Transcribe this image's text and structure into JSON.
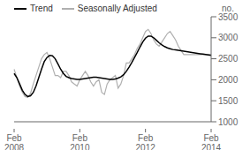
{
  "chart_data": {
    "type": "line",
    "ylabel": "no.",
    "categories": [
      "Feb\n2008",
      null,
      null,
      null,
      null,
      null,
      null,
      null,
      null,
      null,
      null,
      null,
      null,
      null,
      null,
      null,
      null,
      null,
      null,
      null,
      null,
      null,
      null,
      null,
      "Feb\n2010",
      null,
      null,
      null,
      null,
      null,
      null,
      null,
      null,
      null,
      null,
      null,
      null,
      null,
      null,
      null,
      null,
      null,
      null,
      null,
      null,
      null,
      null,
      null,
      "Feb\n2012",
      null,
      null,
      null,
      null,
      null,
      null,
      null,
      null,
      null,
      null,
      null,
      null,
      null,
      null,
      null,
      null,
      null,
      null,
      null,
      null,
      null,
      null,
      null,
      "Feb\n2014"
    ],
    "series": [
      {
        "name": "Trend",
        "color": "#000000",
        "values": [
          2150,
          2050,
          1900,
          1750,
          1650,
          1600,
          1620,
          1700,
          1850,
          2050,
          2250,
          2430,
          2530,
          2580,
          2570,
          2500,
          2380,
          2250,
          2150,
          2080,
          2050,
          2030,
          2020,
          2010,
          2010,
          2020,
          2030,
          2040,
          2050,
          2060,
          2060,
          2050,
          2040,
          2030,
          2020,
          2010,
          2010,
          2020,
          2040,
          2070,
          2120,
          2200,
          2300,
          2410,
          2530,
          2650,
          2780,
          2900,
          2990,
          3040,
          3040,
          3000,
          2940,
          2880,
          2830,
          2790,
          2760,
          2740,
          2720,
          2710,
          2700,
          2690,
          2680,
          2670,
          2660,
          2650,
          2640,
          2630,
          2620,
          2610,
          2600,
          2590,
          2580
        ]
      },
      {
        "name": "Seasonally Adjusted",
        "color": "#b0b0b0",
        "values": [
          2250,
          2050,
          1850,
          1700,
          1600,
          1580,
          1680,
          1900,
          2100,
          2300,
          2500,
          2600,
          2650,
          2500,
          2300,
          2100,
          2100,
          2050,
          2200,
          2200,
          2100,
          1950,
          1900,
          1850,
          2000,
          2100,
          2200,
          2100,
          1950,
          1850,
          1950,
          2000,
          1700,
          1650,
          1900,
          2000,
          2050,
          2100,
          1800,
          1900,
          2100,
          2400,
          2400,
          2500,
          2600,
          2750,
          2850,
          3000,
          3150,
          3200,
          3100,
          2950,
          2850,
          2800,
          2900,
          3000,
          3100,
          3150,
          3050,
          2950,
          2800,
          2700,
          2600,
          2600,
          2600,
          2600,
          2600,
          2600,
          2600,
          2600,
          2600,
          2600,
          2600
        ]
      }
    ],
    "ylim": [
      1000,
      3500
    ],
    "yticks": [
      1000,
      1500,
      2000,
      2500,
      3000,
      3500
    ],
    "legend": "upper left",
    "grid": false
  }
}
